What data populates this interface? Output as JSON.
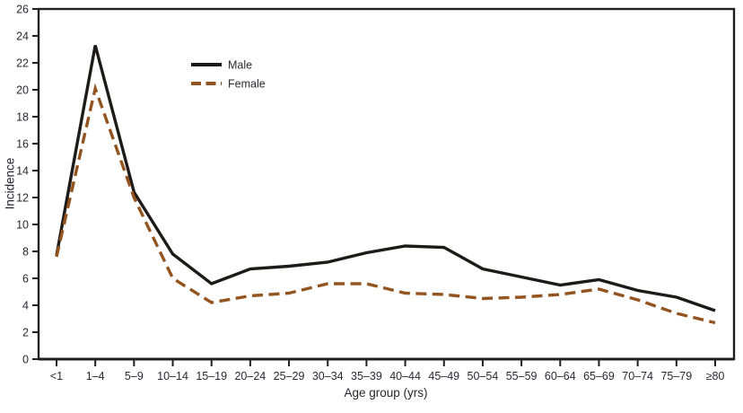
{
  "figure": {
    "background": "#ffffff",
    "frame_color": "#231f20",
    "tick_color": "#231f20",
    "text_color": "#2a2a33"
  },
  "chart_data": {
    "type": "line",
    "title": "",
    "xlabel": "Age group (yrs)",
    "ylabel": "Incidence",
    "categories": [
      "<1",
      "1–4",
      "5–9",
      "10–14",
      "15–19",
      "20–24",
      "25–29",
      "30–34",
      "35–39",
      "40–44",
      "45–49",
      "50–54",
      "55–59",
      "60–64",
      "65–69",
      "70–74",
      "75–79",
      "≥80"
    ],
    "series": [
      {
        "name": "Male",
        "line_style": "solid",
        "color": "#1d1a19",
        "values": [
          7.7,
          23.3,
          12.4,
          7.8,
          5.6,
          6.7,
          6.9,
          7.2,
          7.9,
          8.4,
          8.3,
          6.7,
          6.1,
          5.5,
          5.9,
          5.1,
          4.6,
          3.6
        ]
      },
      {
        "name": "Female",
        "line_style": "dashed",
        "color": "#935420",
        "values": [
          7.6,
          20.1,
          12.0,
          6.0,
          4.2,
          4.7,
          4.9,
          5.6,
          5.6,
          4.9,
          4.8,
          4.5,
          4.6,
          4.8,
          5.2,
          4.4,
          3.4,
          2.7
        ]
      }
    ],
    "ylim": [
      0,
      26
    ],
    "ytick_step": 2,
    "grid": false,
    "legend": {
      "position": "inside-upper-left",
      "entries": [
        "Male",
        "Female"
      ]
    }
  }
}
